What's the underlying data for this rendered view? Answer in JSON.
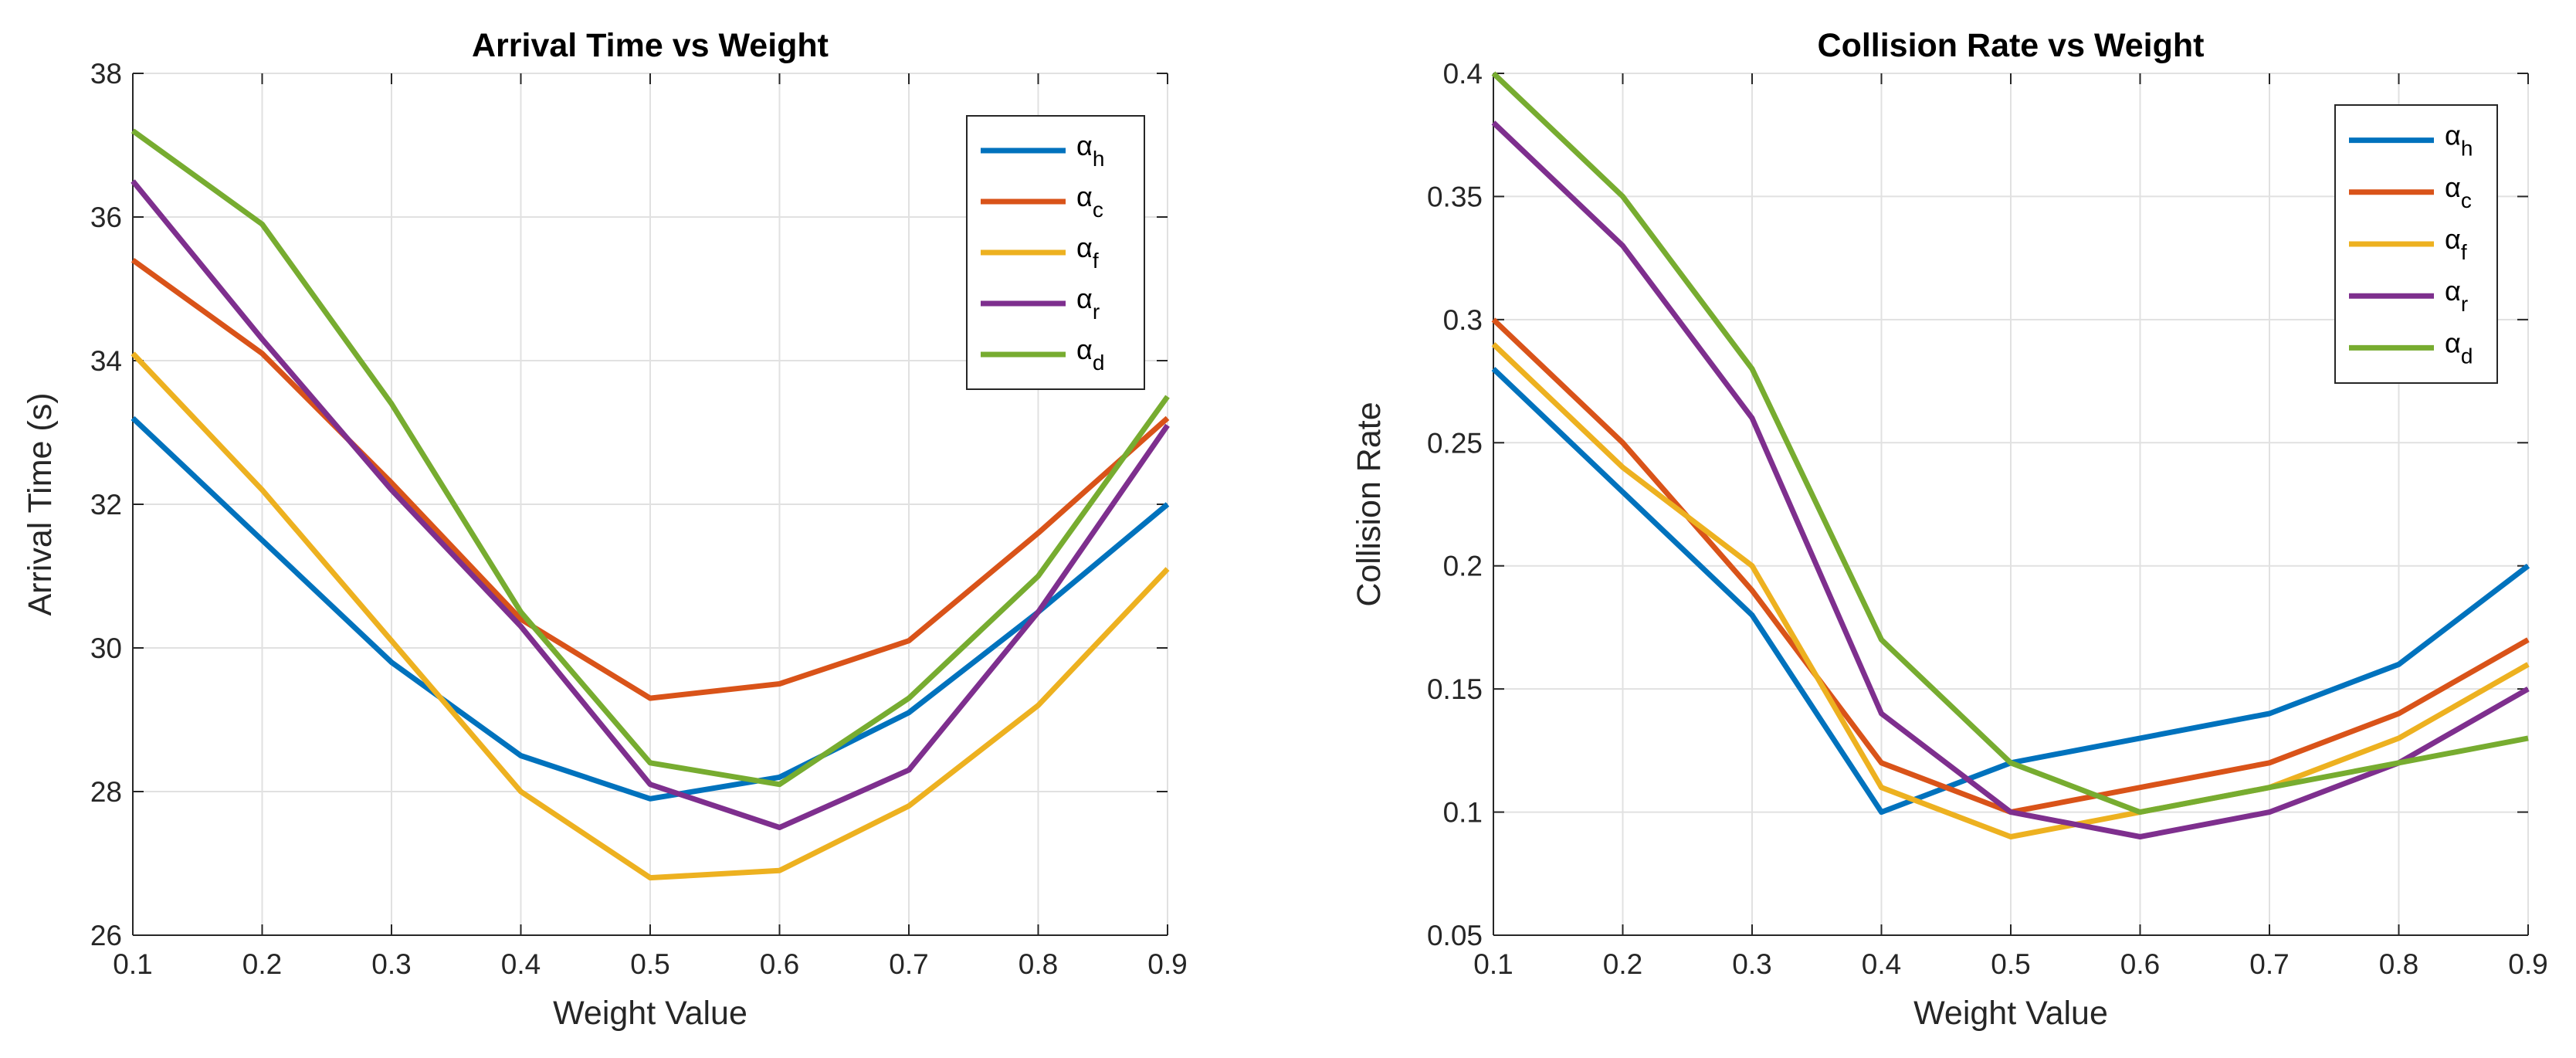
{
  "colors": {
    "h": "#0072BD",
    "c": "#D95319",
    "f": "#EDB120",
    "r": "#7E2F8E",
    "d": "#77AC30",
    "axis": "#262626",
    "grid": "#e1e1e1"
  },
  "chart_data": [
    {
      "type": "line",
      "title": "Arrival Time vs Weight",
      "xlabel": "Weight Value",
      "ylabel": "Arrival Time (s)",
      "xlim": [
        0.1,
        0.9
      ],
      "ylim": [
        26,
        38
      ],
      "xticks": [
        0.1,
        0.2,
        0.3,
        0.4,
        0.5,
        0.6,
        0.7,
        0.8,
        0.9
      ],
      "xtick_labels": [
        "0.1",
        "0.2",
        "0.3",
        "0.4",
        "0.5",
        "0.6",
        "0.7",
        "0.8",
        "0.9"
      ],
      "yticks": [
        26,
        28,
        30,
        32,
        34,
        36,
        38
      ],
      "ytick_labels": [
        "26",
        "28",
        "30",
        "32",
        "34",
        "36",
        "38"
      ],
      "grid": true,
      "legend_position": "top-right",
      "x": [
        0.1,
        0.2,
        0.3,
        0.4,
        0.5,
        0.6,
        0.7,
        0.8,
        0.9
      ],
      "series": [
        {
          "key": "h",
          "base": "α",
          "sub": "h",
          "color": "#0072BD",
          "values": [
            33.2,
            31.5,
            29.8,
            28.5,
            27.9,
            28.2,
            29.1,
            30.5,
            32.0
          ]
        },
        {
          "key": "c",
          "base": "α",
          "sub": "c",
          "color": "#D95319",
          "values": [
            35.4,
            34.1,
            32.3,
            30.4,
            29.3,
            29.5,
            30.1,
            31.6,
            33.2
          ]
        },
        {
          "key": "f",
          "base": "α",
          "sub": "f",
          "color": "#EDB120",
          "values": [
            34.1,
            32.2,
            30.1,
            28.0,
            26.8,
            26.9,
            27.8,
            29.2,
            31.1
          ]
        },
        {
          "key": "r",
          "base": "α",
          "sub": "r",
          "color": "#7E2F8E",
          "values": [
            36.5,
            34.3,
            32.2,
            30.3,
            28.1,
            27.5,
            28.3,
            30.5,
            33.1
          ]
        },
        {
          "key": "d",
          "base": "α",
          "sub": "d",
          "color": "#77AC30",
          "values": [
            37.2,
            35.9,
            33.4,
            30.5,
            28.4,
            28.1,
            29.3,
            31.0,
            33.5
          ]
        }
      ]
    },
    {
      "type": "line",
      "title": "Collision Rate vs Weight",
      "xlabel": "Weight Value",
      "ylabel": "Collision Rate",
      "xlim": [
        0.1,
        0.9
      ],
      "ylim": [
        0.05,
        0.4
      ],
      "xticks": [
        0.1,
        0.2,
        0.3,
        0.4,
        0.5,
        0.6,
        0.7,
        0.8,
        0.9
      ],
      "xtick_labels": [
        "0.1",
        "0.2",
        "0.3",
        "0.4",
        "0.5",
        "0.6",
        "0.7",
        "0.8",
        "0.9"
      ],
      "yticks": [
        0.05,
        0.1,
        0.15,
        0.2,
        0.25,
        0.3,
        0.35,
        0.4
      ],
      "ytick_labels": [
        "0.05",
        "0.1",
        "0.15",
        "0.2",
        "0.25",
        "0.3",
        "0.35",
        "0.4"
      ],
      "grid": true,
      "legend_position": "top-right",
      "x": [
        0.1,
        0.2,
        0.3,
        0.4,
        0.5,
        0.6,
        0.7,
        0.8,
        0.9
      ],
      "series": [
        {
          "key": "h",
          "base": "α",
          "sub": "h",
          "color": "#0072BD",
          "values": [
            0.28,
            0.23,
            0.18,
            0.1,
            0.12,
            0.13,
            0.14,
            0.16,
            0.2
          ]
        },
        {
          "key": "c",
          "base": "α",
          "sub": "c",
          "color": "#D95319",
          "values": [
            0.3,
            0.25,
            0.19,
            0.12,
            0.1,
            0.11,
            0.12,
            0.14,
            0.17
          ]
        },
        {
          "key": "f",
          "base": "α",
          "sub": "f",
          "color": "#EDB120",
          "values": [
            0.29,
            0.24,
            0.2,
            0.11,
            0.09,
            0.1,
            0.11,
            0.13,
            0.16
          ]
        },
        {
          "key": "r",
          "base": "α",
          "sub": "r",
          "color": "#7E2F8E",
          "values": [
            0.38,
            0.33,
            0.26,
            0.14,
            0.1,
            0.09,
            0.1,
            0.12,
            0.15
          ]
        },
        {
          "key": "d",
          "base": "α",
          "sub": "d",
          "color": "#77AC30",
          "values": [
            0.4,
            0.35,
            0.28,
            0.17,
            0.12,
            0.1,
            0.11,
            0.12,
            0.13
          ]
        }
      ]
    }
  ]
}
